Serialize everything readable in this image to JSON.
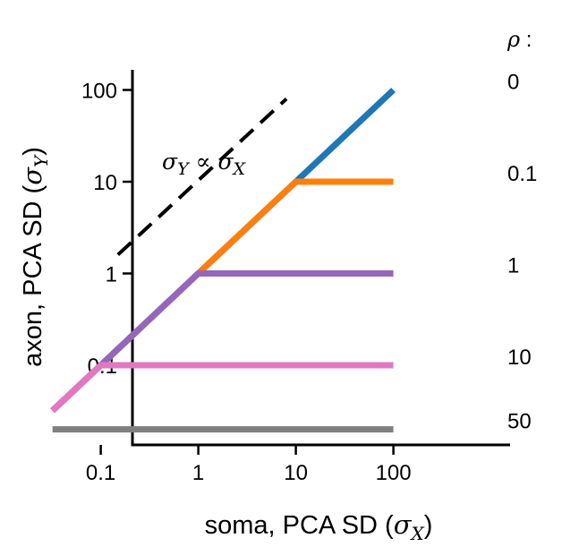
{
  "chart_data": {
    "type": "line",
    "x_scale": "log",
    "y_scale": "log",
    "xlim": [
      0.025,
      150
    ],
    "ylim": [
      0.013,
      160
    ],
    "x_ticks": [
      0.1,
      1,
      10,
      100
    ],
    "x_tick_labels": [
      "0.1",
      "1",
      "10",
      "100"
    ],
    "y_ticks": [
      0.1,
      1,
      10,
      100
    ],
    "y_tick_labels": [
      "0.1",
      "1",
      "10",
      "100"
    ],
    "xlabel": {
      "text": "soma, PCA SD (",
      "symbol": "σ",
      "sub": "X",
      "close": ")"
    },
    "ylabel": {
      "text": "axon, PCA SD (",
      "symbol": "σ",
      "sub": "Y",
      "close": ")"
    },
    "legend_title": {
      "symbol": "ρ",
      "suffix": " :"
    },
    "grid": false,
    "series": [
      {
        "name": "0",
        "color": "#1f77b4",
        "x": [
          0.032,
          100
        ],
        "y": [
          0.032,
          100
        ]
      },
      {
        "name": "0.1",
        "color": "#ff7f0e",
        "x": [
          0.032,
          10,
          100
        ],
        "y": [
          0.032,
          10,
          10
        ]
      },
      {
        "name": "1",
        "color": "#9467bd",
        "x": [
          0.032,
          1,
          100
        ],
        "y": [
          0.032,
          1,
          1
        ]
      },
      {
        "name": "10",
        "color": "#e377c2",
        "x": [
          0.032,
          0.1,
          100
        ],
        "y": [
          0.032,
          0.1,
          0.1
        ]
      },
      {
        "name": "50",
        "color": "#7f7f7f",
        "x": [
          0.032,
          100
        ],
        "y": [
          0.02,
          0.02
        ]
      }
    ],
    "reference_line": {
      "style": "dashed",
      "color": "#000000",
      "x": [
        0.15,
        8
      ],
      "y": [
        1.6,
        80
      ],
      "label": {
        "sym1": "σ",
        "sub1": "Y",
        "op": " ∝ ",
        "sym2": "σ",
        "sub2": "X"
      }
    }
  }
}
